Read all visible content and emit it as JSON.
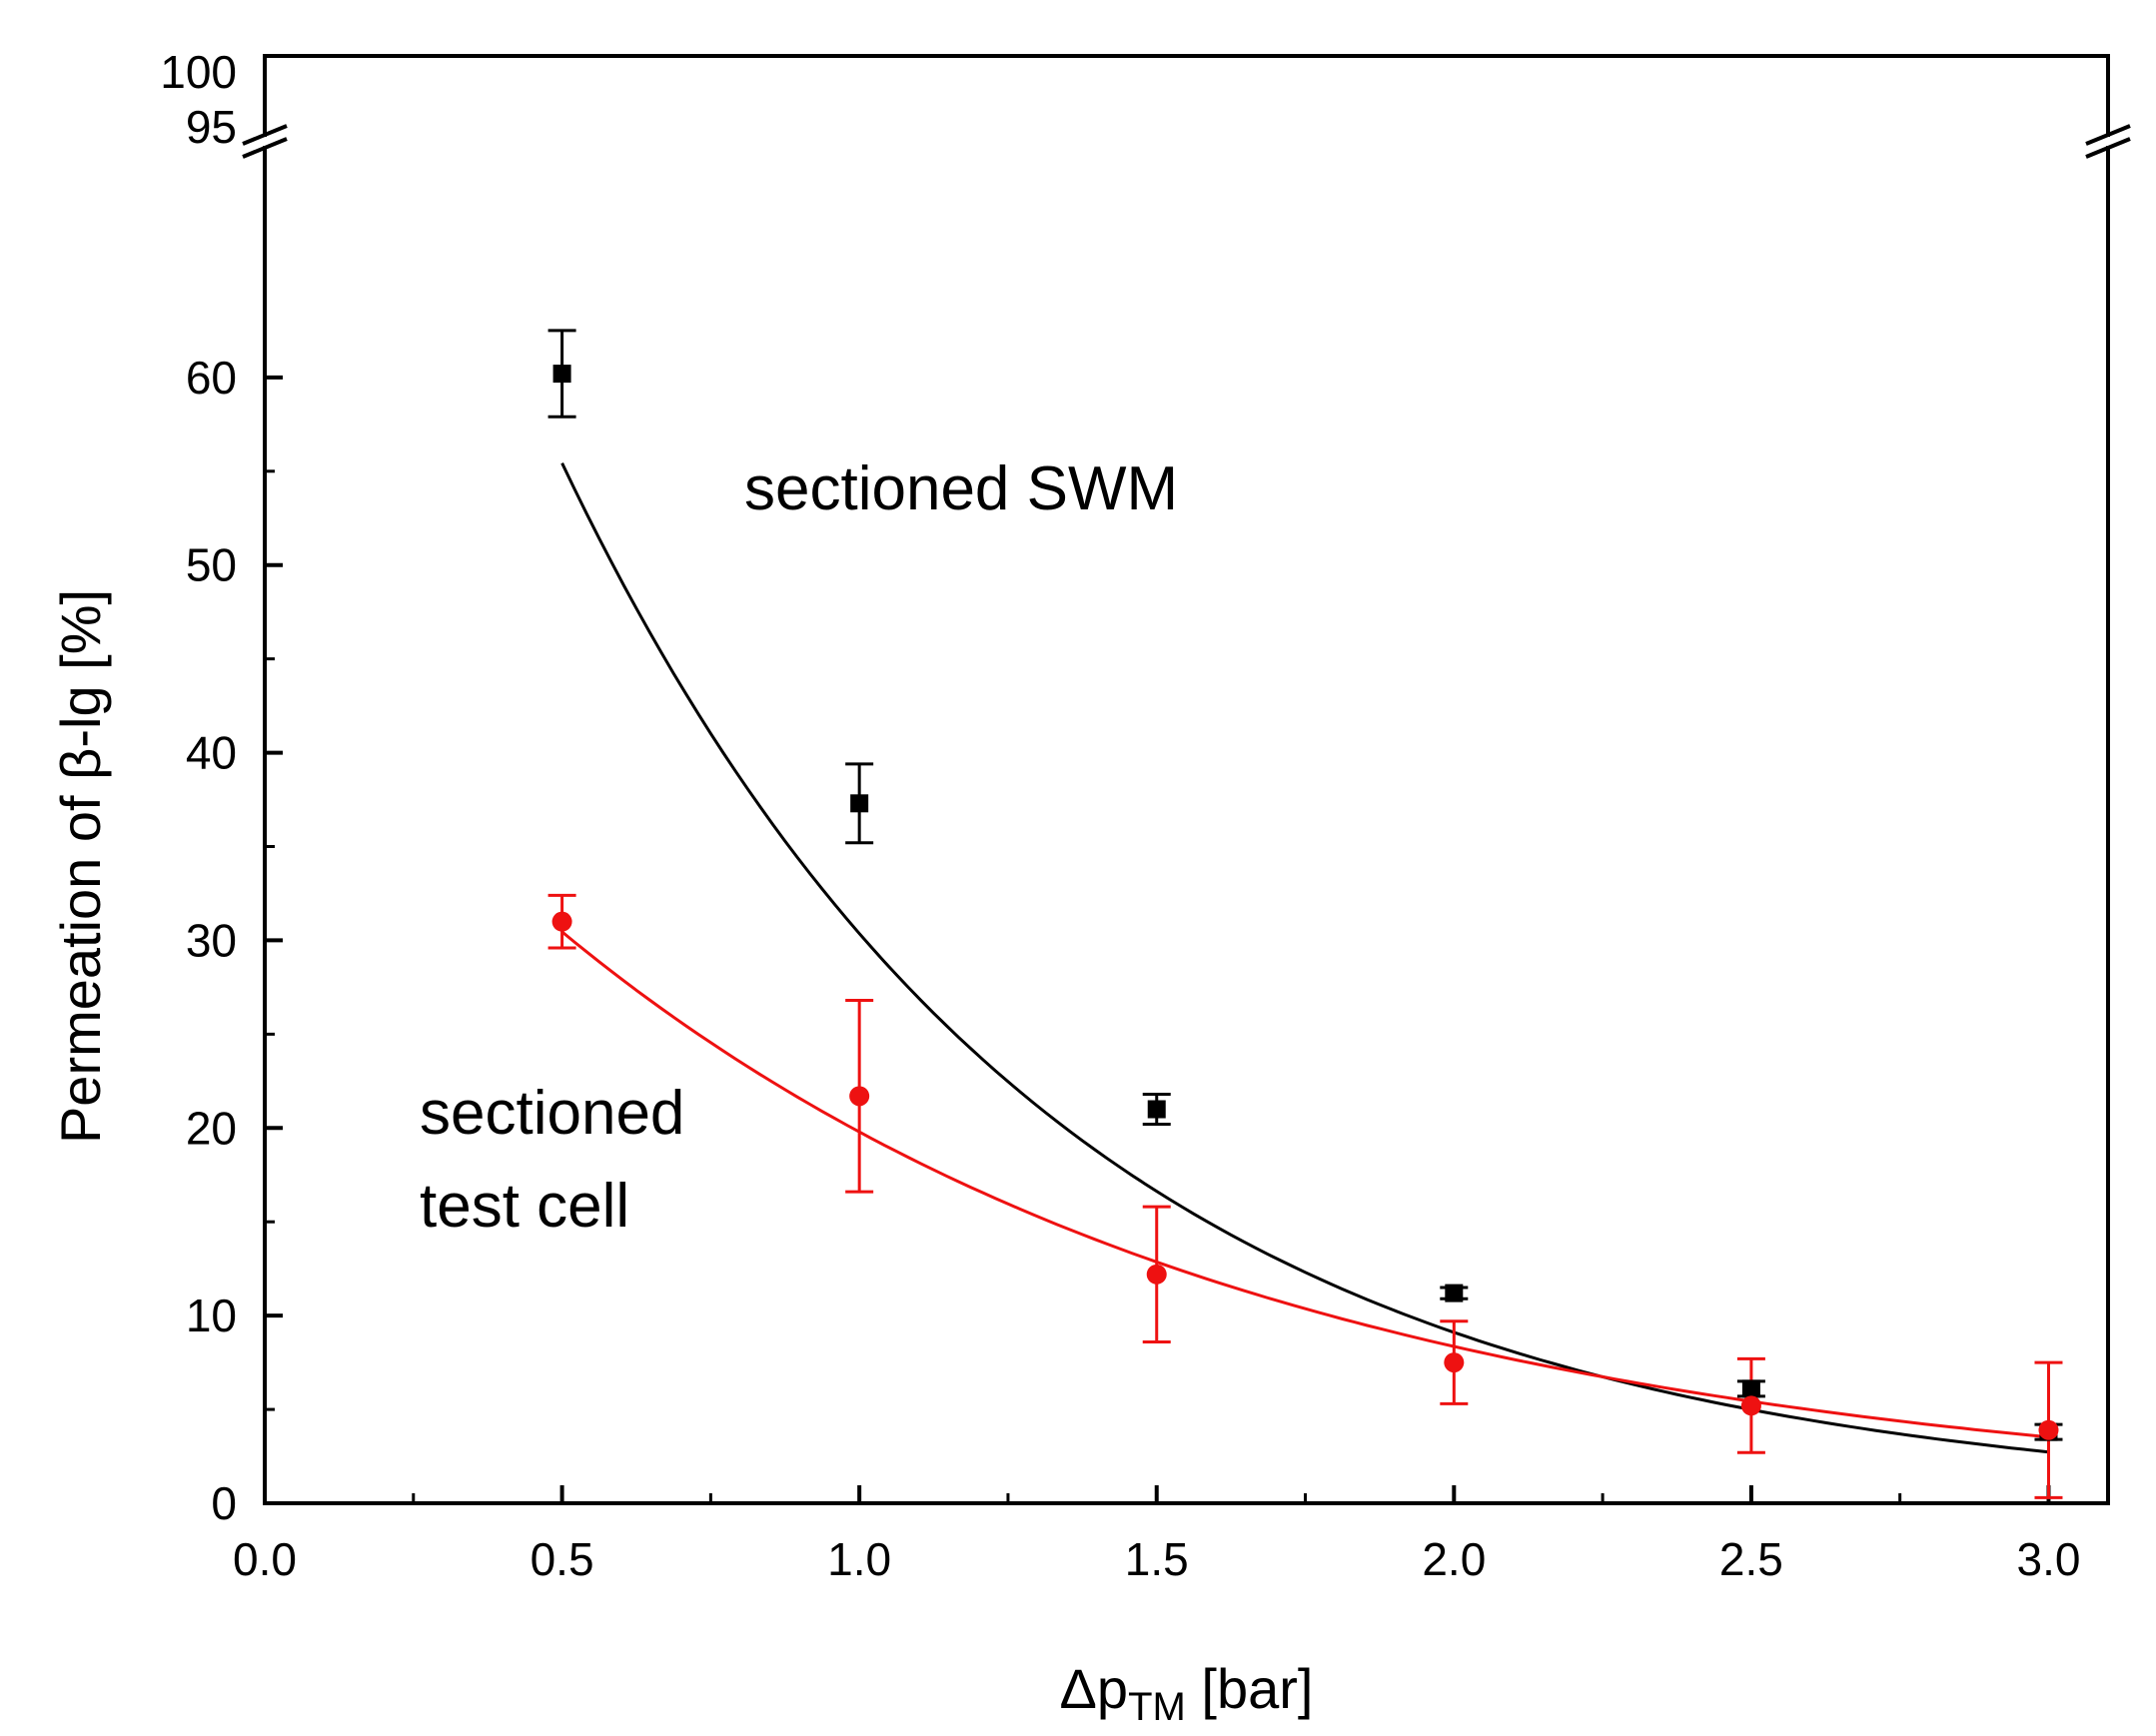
{
  "chart_data": {
    "type": "scatter",
    "xlabel": "Δp",
    "xlabel_sub": "TM",
    "xlabel_unit": " [bar]",
    "ylabel": "Permeation of β-lg [%]",
    "xlim": [
      0.0,
      3.1
    ],
    "ylim": [
      0,
      70
    ],
    "x_ticks": [
      "0.0",
      "0.5",
      "1.0",
      "1.5",
      "2.0",
      "2.5",
      "3.0"
    ],
    "y_ticks": [
      "0",
      "10",
      "20",
      "30",
      "40",
      "50",
      "60"
    ],
    "y_break": {
      "upper_ticks": [
        "95",
        "100"
      ]
    },
    "grid": false,
    "series": [
      {
        "marker": "square",
        "color": "#000000",
        "x": [
          0.5,
          1.0,
          1.5,
          2.0,
          2.5,
          3.0
        ],
        "y": [
          60.2,
          37.3,
          21.0,
          11.2,
          6.1,
          3.8
        ],
        "error": [
          2.3,
          2.1,
          0.8,
          0.3,
          0.4,
          0.4
        ],
        "fit": {
          "model": "exponential",
          "a": 101.2,
          "k": 1.204
        },
        "annotation": [
          "sectioned SWM"
        ]
      },
      {
        "marker": "circle",
        "color": "#ee1111",
        "x": [
          0.5,
          1.0,
          1.5,
          2.0,
          2.5,
          3.0
        ],
        "y": [
          31.0,
          21.7,
          12.2,
          7.5,
          5.2,
          3.9
        ],
        "error": [
          1.4,
          5.1,
          3.6,
          2.2,
          2.5,
          3.6
        ],
        "fit": {
          "model": "exponential",
          "a": 46.86,
          "k": 0.862
        },
        "annotation": [
          "sectioned",
          "test cell"
        ]
      }
    ]
  }
}
